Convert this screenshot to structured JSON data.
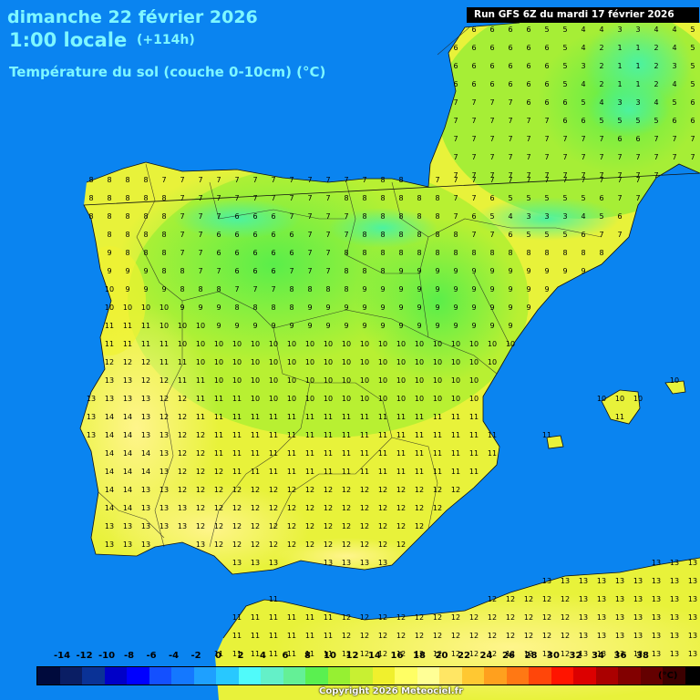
{
  "header": {
    "date": "dimanche 22 février 2026",
    "time": "1:00 locale",
    "offset": "(+114h)",
    "parameter": "Température du sol (couche 0-10cm) (°C)"
  },
  "run_label": "Run GFS 6Z du mardi 17 février 2026",
  "legend": {
    "unit": "(°C)",
    "ticks": [
      "-14",
      "-12",
      "-10",
      "-8",
      "-6",
      "-4",
      "-2",
      "0",
      "2",
      "4",
      "6",
      "8",
      "10",
      "12",
      "14",
      "16",
      "18",
      "20",
      "22",
      "24",
      "26",
      "28",
      "30",
      "32",
      "34",
      "36",
      "38"
    ],
    "colors": [
      "#000a3c",
      "#0a1e64",
      "#0a3296",
      "#0000c8",
      "#0000ff",
      "#1450ff",
      "#1478ff",
      "#1ea0ff",
      "#28c8ff",
      "#50fafa",
      "#64f0c8",
      "#64f096",
      "#5af050",
      "#96f032",
      "#c8f032",
      "#f0f02d",
      "#ffff64",
      "#ffff96",
      "#ffe664",
      "#ffc832",
      "#ffa01e",
      "#ff7814",
      "#ff460a",
      "#ff1400",
      "#dc0000",
      "#aa0000",
      "#820000",
      "#640000",
      "#3c0000",
      "#000000"
    ]
  },
  "copyright": "Copyright 2026 Meteociel.fr",
  "colors": {
    "sea": "#0a84f0",
    "header_text": "#7ef7ff"
  }
}
